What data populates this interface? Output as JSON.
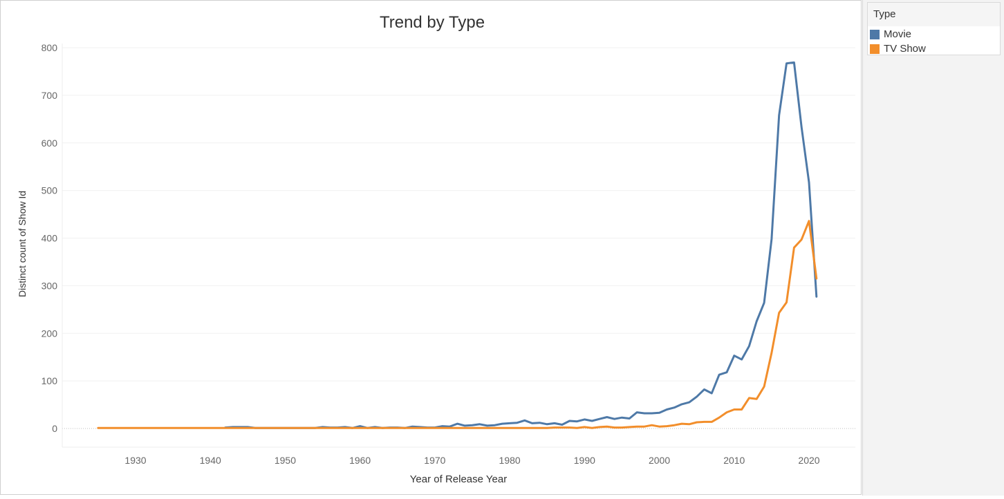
{
  "chart_data": {
    "type": "line",
    "title": "Trend by Type",
    "xlabel": "Year of Release Year",
    "ylabel": "Distinct count of Show Id",
    "xlim": [
      1920,
      2025
    ],
    "ylim": [
      -40,
      810
    ],
    "x_ticks": [
      1930,
      1940,
      1950,
      1960,
      1970,
      1980,
      1990,
      2000,
      2010,
      2020
    ],
    "y_ticks": [
      0,
      100,
      200,
      300,
      400,
      500,
      600,
      700,
      800
    ],
    "grid": true,
    "legend_position": "right",
    "series": [
      {
        "name": "Movie",
        "color": "#4e79a7",
        "points": [
          [
            1942,
            2
          ],
          [
            1943,
            3
          ],
          [
            1944,
            3
          ],
          [
            1945,
            3
          ],
          [
            1946,
            1
          ],
          [
            1947,
            1
          ],
          [
            1948,
            1
          ],
          [
            1949,
            1
          ],
          [
            1950,
            1
          ],
          [
            1951,
            1
          ],
          [
            1952,
            1
          ],
          [
            1953,
            1
          ],
          [
            1954,
            1
          ],
          [
            1955,
            3
          ],
          [
            1956,
            2
          ],
          [
            1957,
            2
          ],
          [
            1958,
            3
          ],
          [
            1959,
            1
          ],
          [
            1960,
            5
          ],
          [
            1961,
            1
          ],
          [
            1962,
            3
          ],
          [
            1963,
            1
          ],
          [
            1964,
            2
          ],
          [
            1965,
            2
          ],
          [
            1966,
            1
          ],
          [
            1967,
            4
          ],
          [
            1968,
            3
          ],
          [
            1969,
            2
          ],
          [
            1970,
            2
          ],
          [
            1971,
            5
          ],
          [
            1972,
            4
          ],
          [
            1973,
            10
          ],
          [
            1974,
            6
          ],
          [
            1975,
            7
          ],
          [
            1976,
            9
          ],
          [
            1977,
            6
          ],
          [
            1978,
            7
          ],
          [
            1979,
            10
          ],
          [
            1980,
            11
          ],
          [
            1981,
            12
          ],
          [
            1982,
            17
          ],
          [
            1983,
            11
          ],
          [
            1984,
            12
          ],
          [
            1985,
            9
          ],
          [
            1986,
            11
          ],
          [
            1987,
            8
          ],
          [
            1988,
            16
          ],
          [
            1989,
            15
          ],
          [
            1990,
            19
          ],
          [
            1991,
            16
          ],
          [
            1992,
            20
          ],
          [
            1993,
            24
          ],
          [
            1994,
            20
          ],
          [
            1995,
            23
          ],
          [
            1996,
            21
          ],
          [
            1997,
            34
          ],
          [
            1998,
            32
          ],
          [
            1999,
            32
          ],
          [
            2000,
            33
          ],
          [
            2001,
            40
          ],
          [
            2002,
            44
          ],
          [
            2003,
            51
          ],
          [
            2004,
            55
          ],
          [
            2005,
            67
          ],
          [
            2006,
            82
          ],
          [
            2007,
            74
          ],
          [
            2008,
            113
          ],
          [
            2009,
            118
          ],
          [
            2010,
            153
          ],
          [
            2011,
            145
          ],
          [
            2012,
            173
          ],
          [
            2013,
            225
          ],
          [
            2014,
            264
          ],
          [
            2015,
            398
          ],
          [
            2016,
            658
          ],
          [
            2017,
            767
          ],
          [
            2018,
            769
          ],
          [
            2019,
            633
          ],
          [
            2020,
            517
          ],
          [
            2021,
            277
          ]
        ]
      },
      {
        "name": "TV Show",
        "color": "#f28e2b",
        "points": [
          [
            1925,
            1
          ],
          [
            1930,
            1
          ],
          [
            1935,
            1
          ],
          [
            1940,
            1
          ],
          [
            1945,
            1
          ],
          [
            1950,
            1
          ],
          [
            1955,
            1
          ],
          [
            1960,
            1
          ],
          [
            1965,
            1
          ],
          [
            1970,
            1
          ],
          [
            1975,
            1
          ],
          [
            1980,
            1
          ],
          [
            1985,
            1
          ],
          [
            1986,
            2
          ],
          [
            1987,
            2
          ],
          [
            1988,
            2
          ],
          [
            1989,
            1
          ],
          [
            1990,
            3
          ],
          [
            1991,
            1
          ],
          [
            1992,
            3
          ],
          [
            1993,
            4
          ],
          [
            1994,
            2
          ],
          [
            1995,
            2
          ],
          [
            1996,
            3
          ],
          [
            1997,
            4
          ],
          [
            1998,
            4
          ],
          [
            1999,
            7
          ],
          [
            2000,
            4
          ],
          [
            2001,
            5
          ],
          [
            2002,
            7
          ],
          [
            2003,
            10
          ],
          [
            2004,
            9
          ],
          [
            2005,
            13
          ],
          [
            2006,
            14
          ],
          [
            2007,
            14
          ],
          [
            2008,
            23
          ],
          [
            2009,
            34
          ],
          [
            2010,
            40
          ],
          [
            2011,
            40
          ],
          [
            2012,
            64
          ],
          [
            2013,
            62
          ],
          [
            2014,
            88
          ],
          [
            2015,
            159
          ],
          [
            2016,
            243
          ],
          [
            2017,
            265
          ],
          [
            2018,
            380
          ],
          [
            2019,
            397
          ],
          [
            2020,
            436
          ],
          [
            2021,
            315
          ]
        ]
      }
    ]
  },
  "legend": {
    "title": "Type",
    "items": [
      {
        "label": "Movie",
        "color": "#4e79a7"
      },
      {
        "label": "TV Show",
        "color": "#f28e2b"
      }
    ]
  }
}
